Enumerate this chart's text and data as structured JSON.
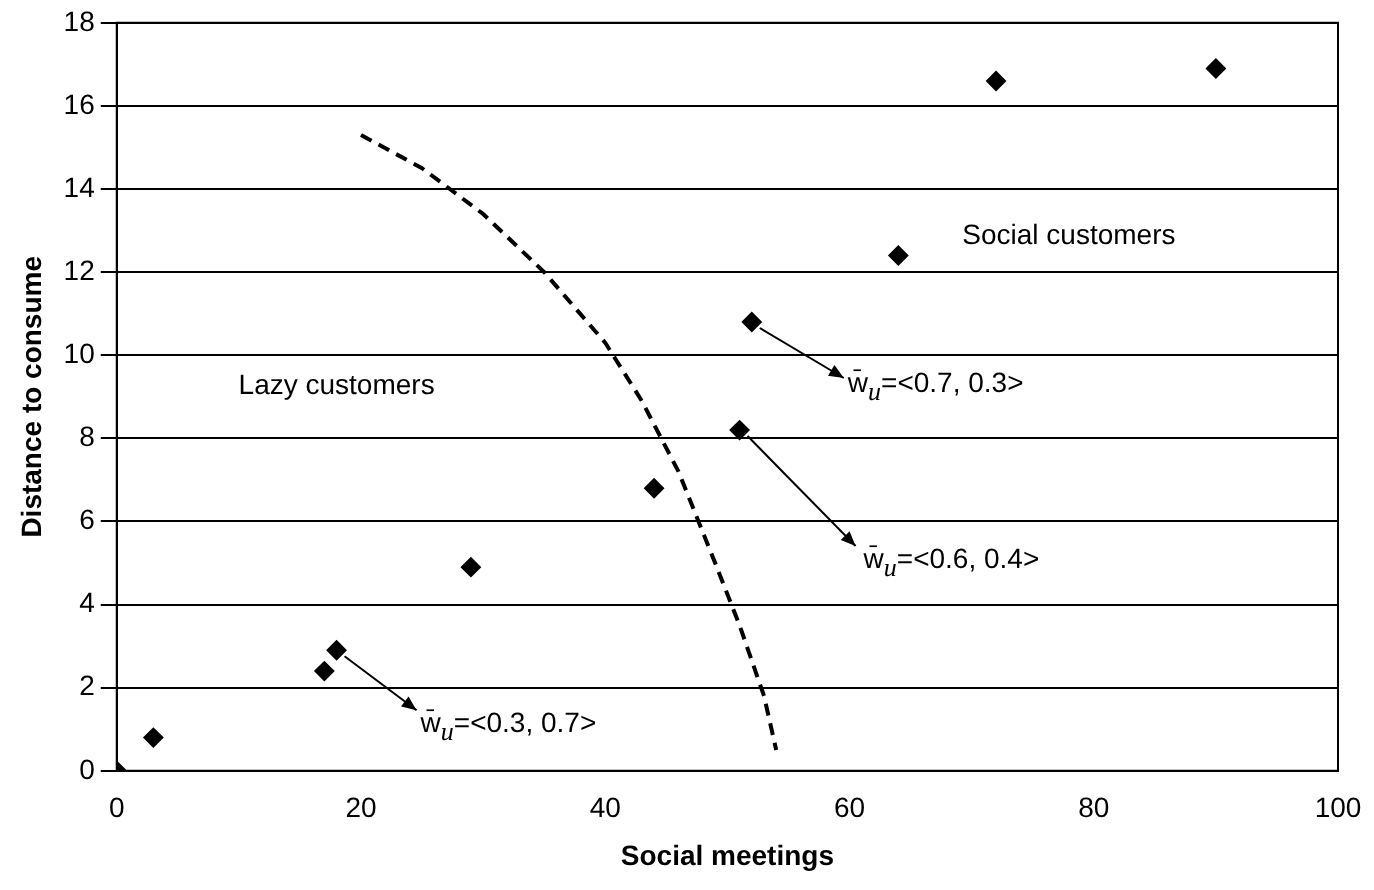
{
  "chart_data": {
    "type": "scatter",
    "xlabel": "Social meetings",
    "ylabel": "Distance to consume",
    "xlim": [
      0,
      100
    ],
    "xticks": [
      0,
      20,
      40,
      60,
      80,
      100
    ],
    "ylim": [
      0,
      18
    ],
    "yticks": [
      0,
      2,
      4,
      6,
      8,
      10,
      12,
      14,
      16,
      18
    ],
    "grid": "y",
    "legend": false,
    "marker": "diamond",
    "series": [
      {
        "color": "#000000",
        "x": [
          0,
          3,
          17,
          18,
          29,
          44,
          51,
          52,
          64,
          72,
          90
        ],
        "values": [
          0,
          0.8,
          2.4,
          2.9,
          4.9,
          6.8,
          8.2,
          10.8,
          12.4,
          16.6,
          16.9
        ]
      },
      {
        "type": "line",
        "color": "#000000",
        "line_style": "dashed",
        "marker": "none",
        "x": [
          20,
          25,
          30,
          35,
          40,
          43,
          46,
          49,
          51,
          53,
          54
        ],
        "values": [
          15.3,
          14.5,
          13.4,
          12,
          10.3,
          8.9,
          7.2,
          5,
          3.5,
          1.8,
          0.5
        ]
      }
    ],
    "annotations": [
      "Social customers",
      "Lazy customers",
      {
        "text": "w̄$_{u}$=<0.7, 0.3>",
        "x": 52,
        "y": 10.8
      },
      {
        "text": "w̄$_{u}$=<0.6, 0.4>",
        "x": 51,
        "y": 8.2
      },
      {
        "text": "w̄$_{u}$=<0.3, 0.7>",
        "x": 18,
        "y": 2.9
      }
    ]
  }
}
